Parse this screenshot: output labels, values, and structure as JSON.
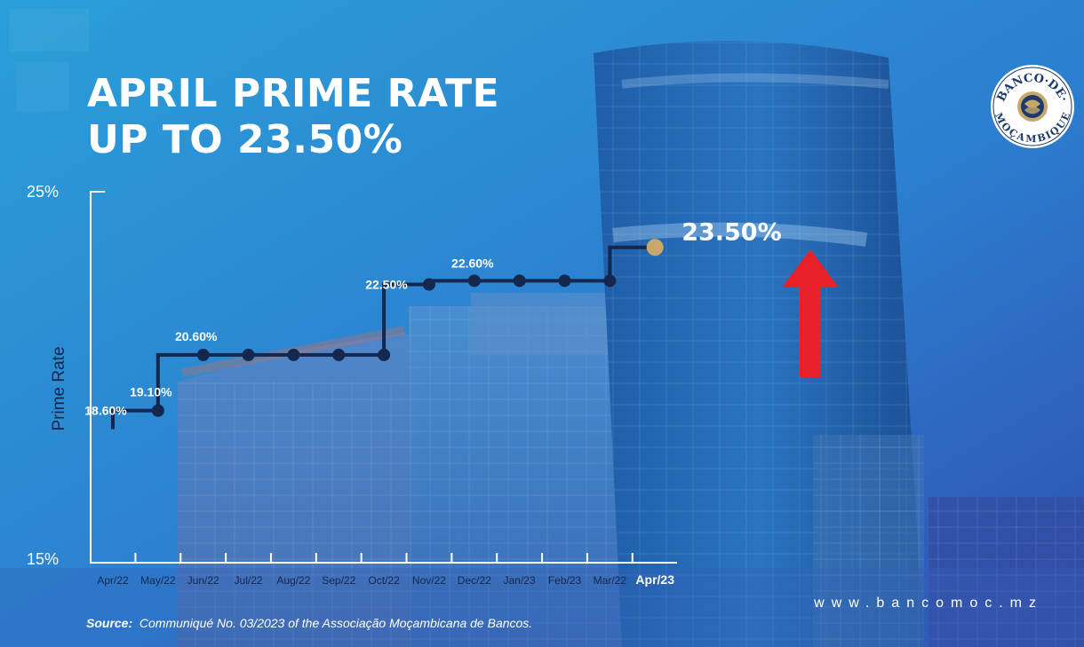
{
  "title_line1": "APRIL PRIME RATE",
  "title_line2": "UP TO 23.50%",
  "source_label": "Source:",
  "source_text": "Communiqué No. 03/2023 of the Associação Moçambicana de Bancos.",
  "website": "www.bancomoc.mz",
  "logo": {
    "top_text": "BANCO·DE·",
    "bottom_text": "MOÇAMBIQUE"
  },
  "colors": {
    "line": "#14274e",
    "highlight": "#c8a86a",
    "arrow": "#e8202a",
    "text": "#ffffff"
  },
  "chart_data": {
    "type": "line",
    "step": true,
    "title": "APRIL PRIME RATE UP TO 23.50%",
    "ylabel": "Prime Rate",
    "ylim": [
      15,
      25
    ],
    "ytick_labels": [
      "25%",
      "15%"
    ],
    "categories": [
      "Apr/22",
      "May/22",
      "Jun/22",
      "Jul/22",
      "Aug/22",
      "Sep/22",
      "Oct/22",
      "Nov/22",
      "Dec/22",
      "Jan/23",
      "Feb/23",
      "Mar/22",
      "Apr/23"
    ],
    "values": [
      18.6,
      19.1,
      20.6,
      20.6,
      20.6,
      20.6,
      20.6,
      22.5,
      22.6,
      22.6,
      22.6,
      22.6,
      23.5
    ],
    "data_labels": [
      {
        "index": 0,
        "text": "18.60%"
      },
      {
        "index": 1,
        "text": "19.10%"
      },
      {
        "index": 2,
        "text": "20.60%"
      },
      {
        "index": 7,
        "text": "22.50%"
      },
      {
        "index": 8,
        "text": "22.60%"
      },
      {
        "index": 12,
        "text": "23.50%"
      }
    ],
    "highlight_index": 12,
    "annotation": "up-arrow"
  }
}
